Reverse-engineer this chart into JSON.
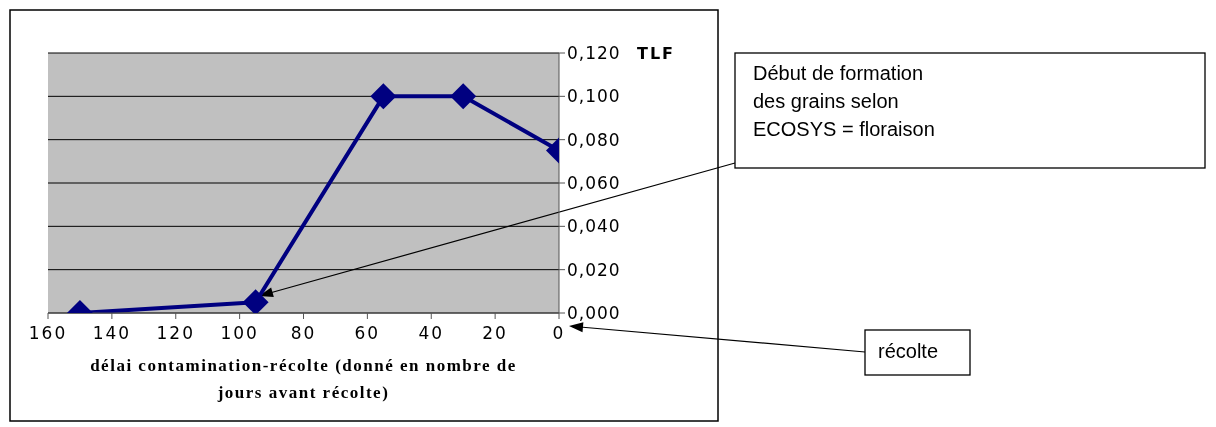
{
  "chart_data": {
    "type": "line",
    "xlabel": "délai contamination-récolte (donné en nombre de jours avant récolte)",
    "ylabel": "TLF",
    "x": [
      150,
      95,
      55,
      30,
      0
    ],
    "series": [
      {
        "color": "#000080",
        "values": [
          0,
          0.005,
          0.1,
          0.1,
          0.075
        ]
      }
    ],
    "xlim": [
      160,
      0
    ],
    "xticks": [
      160,
      140,
      120,
      100,
      80,
      60,
      40,
      20,
      0
    ],
    "ylim": [
      0,
      0.12
    ],
    "yticks": [
      {
        "value": 0,
        "label": "0,000"
      },
      {
        "value": 0.02,
        "label": "0,020"
      },
      {
        "value": 0.04,
        "label": "0,040"
      },
      {
        "value": 0.06,
        "label": "0,060"
      },
      {
        "value": 0.08,
        "label": "0,080"
      },
      {
        "value": 0.1,
        "label": "0,100"
      },
      {
        "value": 0.12,
        "label": "0,120"
      }
    ],
    "grid": "y",
    "marker": "diamond",
    "line_style": "solid",
    "legend": false,
    "annotations": [
      "Début de formation des grains selon ECOSYS = floraison",
      "récolte"
    ]
  }
}
